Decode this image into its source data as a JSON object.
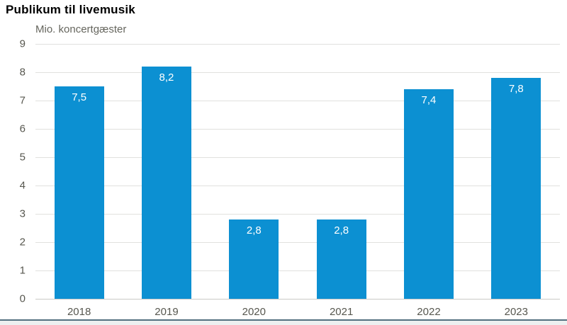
{
  "header": {
    "title": "Publikum til livemusik"
  },
  "chart_data": {
    "type": "bar",
    "title": "Publikum til livemusik",
    "unit_label": "Mio. koncertgæster",
    "categories": [
      "2018",
      "2019",
      "2020",
      "2021",
      "2022",
      "2023"
    ],
    "values": [
      7.5,
      8.2,
      2.8,
      2.8,
      7.4,
      7.8
    ],
    "value_labels": [
      "7,5",
      "8,2",
      "2,8",
      "2,8",
      "7,4",
      "7,8"
    ],
    "xlabel": "",
    "ylabel": "Mio. koncertgæster",
    "ylim": [
      0,
      9
    ],
    "ytick_labels": [
      "0",
      "1",
      "2",
      "3",
      "4",
      "5",
      "6",
      "7",
      "8",
      "9"
    ],
    "grid": true,
    "legend": "none",
    "colors": {
      "bar": "#0c90d2",
      "bar_value_text": "#ffffff",
      "axis_text": "#57574f",
      "gridline": "#e1e1de",
      "baseline": "#c9c9c6"
    }
  },
  "footer": {
    "rule_color": "#53707f",
    "strip_color": "#edf0f0"
  }
}
